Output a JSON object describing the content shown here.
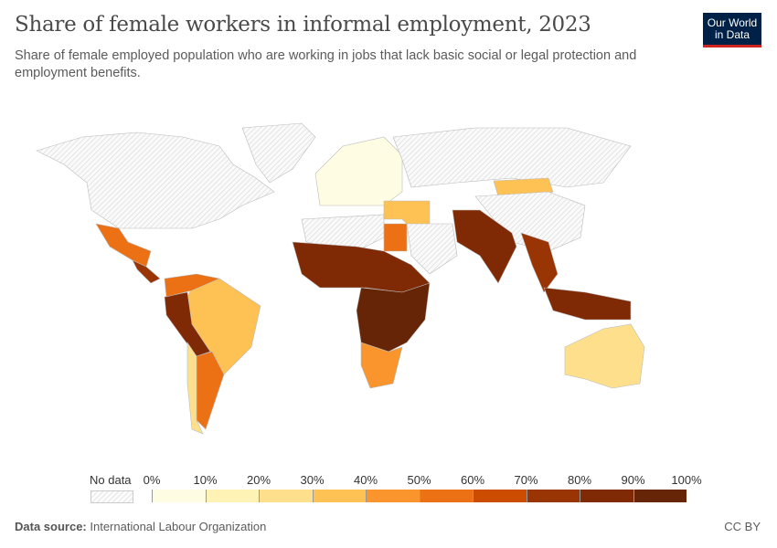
{
  "header": {
    "title": "Share of female workers in informal employment, 2023",
    "subtitle": "Share of female employed population who are working in jobs that lack basic social or legal protection and employment benefits.",
    "logo_text": "Our World in Data"
  },
  "footer": {
    "source_label": "Data source:",
    "source": "International Labour Organization",
    "license": "CC BY"
  },
  "chart_data": {
    "type": "choropleth",
    "title": "Share of female workers in informal employment, 2023",
    "legend": {
      "no_data_label": "No data",
      "ticks": [
        "0%",
        "10%",
        "20%",
        "30%",
        "40%",
        "50%",
        "60%",
        "70%",
        "80%",
        "90%",
        "100%"
      ],
      "bins": [
        {
          "range": [
            0,
            10
          ],
          "color": "#fefce3"
        },
        {
          "range": [
            10,
            20
          ],
          "color": "#fef3b4"
        },
        {
          "range": [
            20,
            30
          ],
          "color": "#fee08c"
        },
        {
          "range": [
            30,
            40
          ],
          "color": "#fdc253"
        },
        {
          "range": [
            40,
            50
          ],
          "color": "#f9952c"
        },
        {
          "range": [
            50,
            60
          ],
          "color": "#ec7014"
        },
        {
          "range": [
            60,
            70
          ],
          "color": "#cc4c02"
        },
        {
          "range": [
            70,
            80
          ],
          "color": "#993404"
        },
        {
          "range": [
            80,
            90
          ],
          "color": "#7f2a04"
        },
        {
          "range": [
            90,
            100
          ],
          "color": "#662506"
        }
      ],
      "no_data_color": "#eeeeee"
    },
    "regions": [
      {
        "name": "Mexico",
        "bin": [
          50,
          60
        ]
      },
      {
        "name": "Central America",
        "bin": [
          70,
          80
        ]
      },
      {
        "name": "Brazil",
        "bin": [
          30,
          40
        ]
      },
      {
        "name": "Peru & Bolivia",
        "bin": [
          70,
          90
        ]
      },
      {
        "name": "Argentina",
        "bin": [
          50,
          60
        ]
      },
      {
        "name": "Chile",
        "bin": [
          20,
          30
        ]
      },
      {
        "name": "Europe",
        "bin": [
          0,
          20
        ]
      },
      {
        "name": "West Africa",
        "bin": [
          80,
          100
        ]
      },
      {
        "name": "Egypt",
        "bin": [
          50,
          60
        ]
      },
      {
        "name": "Central & East Africa",
        "bin": [
          80,
          100
        ]
      },
      {
        "name": "Southern Africa",
        "bin": [
          40,
          60
        ]
      },
      {
        "name": "Mongolia",
        "bin": [
          30,
          40
        ]
      },
      {
        "name": "South Asia",
        "bin": [
          80,
          100
        ]
      },
      {
        "name": "Southeast Asia",
        "bin": [
          70,
          90
        ]
      },
      {
        "name": "Indonesia",
        "bin": [
          80,
          90
        ]
      },
      {
        "name": "Australia",
        "bin": [
          20,
          30
        ]
      }
    ],
    "no_data_regions": [
      "North America",
      "Greenland",
      "Russia",
      "China",
      "Western Sahara/Algeria/Libya"
    ]
  }
}
